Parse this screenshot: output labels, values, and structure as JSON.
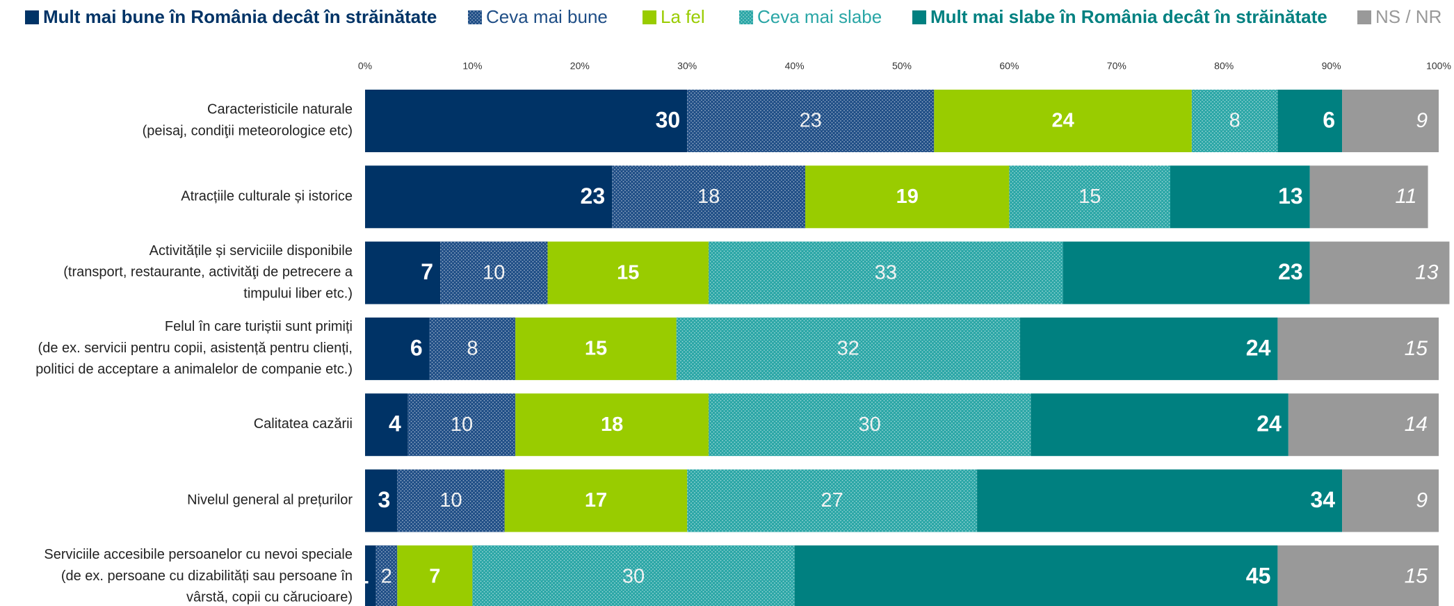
{
  "chart_data": {
    "type": "stacked-bar-horizontal",
    "categories": [
      [
        "Caracteristicile naturale",
        "(peisaj, condiţii meteorologice etc)"
      ],
      [
        "Atracțiile culturale și istorice"
      ],
      [
        "Activitățile și serviciile disponibile",
        "(transport, restaurante, activităţi de petrecere a",
        "timpului liber etc.)"
      ],
      [
        "Felul în care turiștii sunt primiți",
        "(de ex. servicii pentru copii, asistență pentru clienți,",
        "politici de acceptare a animalelor de companie etc.)"
      ],
      [
        "Calitatea cazării"
      ],
      [
        "Nivelul general al prețurilor"
      ],
      [
        "Serviciile accesibile persoanelor cu nevoi speciale",
        "(de ex. persoane cu dizabilități sau persoane în",
        "vârstă, copii cu cărucioare)"
      ]
    ],
    "series": [
      {
        "name": "Mult mai bune în România decât în străinătate",
        "color": "#003366",
        "values": [
          30,
          23,
          7,
          6,
          4,
          3,
          1
        ]
      },
      {
        "name": "Ceva mai bune",
        "color": "#1f4e86",
        "pattern": "dots",
        "values": [
          23,
          18,
          10,
          8,
          10,
          10,
          2
        ]
      },
      {
        "name": "La fel",
        "color": "#99cc00",
        "values": [
          24,
          19,
          15,
          15,
          18,
          17,
          7
        ]
      },
      {
        "name": "Ceva mai slabe",
        "color": "#2aa6a6",
        "pattern": "dots",
        "values": [
          8,
          15,
          33,
          32,
          30,
          27,
          30
        ]
      },
      {
        "name": "Mult mai slabe în România decât în străinătate",
        "color": "#008080",
        "values": [
          6,
          13,
          23,
          24,
          24,
          34,
          45
        ]
      },
      {
        "name": "NS / NR",
        "color": "#999999",
        "values": [
          9,
          11,
          13,
          15,
          14,
          9,
          15
        ]
      }
    ],
    "xlim": [
      0,
      100
    ],
    "xticks": [
      {
        "value": 0,
        "label": "0%"
      },
      {
        "value": 10,
        "label": "10%"
      },
      {
        "value": 20,
        "label": "20%"
      },
      {
        "value": 30,
        "label": "30%"
      },
      {
        "value": 40,
        "label": "40%"
      },
      {
        "value": 50,
        "label": "50%"
      },
      {
        "value": 60,
        "label": "60%"
      },
      {
        "value": 70,
        "label": "70%"
      },
      {
        "value": 80,
        "label": "80%"
      },
      {
        "value": 90,
        "label": "90%"
      },
      {
        "value": 100,
        "label": "100%"
      }
    ],
    "legend": "top"
  }
}
